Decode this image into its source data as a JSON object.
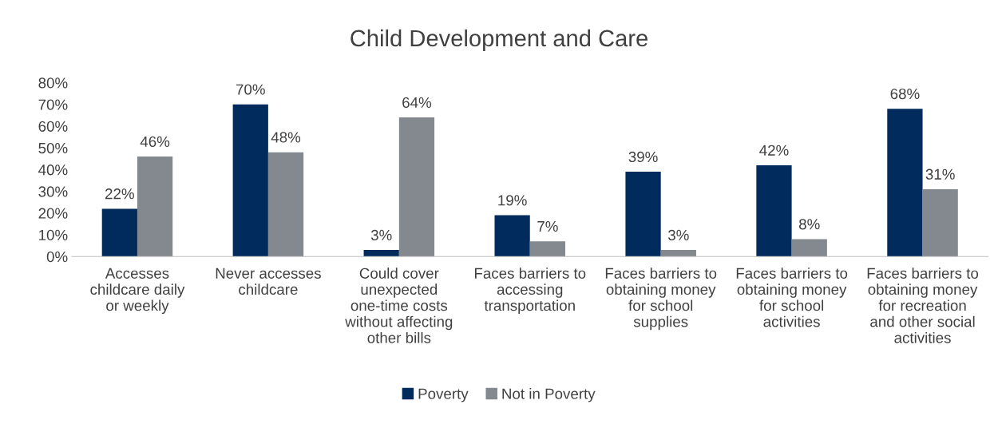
{
  "chart_data": {
    "type": "bar",
    "title": "Child Development and Care",
    "categories": [
      "Accesses\nchildcare daily\nor weekly",
      "Never accesses\nchildcare",
      "Could cover\nunexpected\none-time costs\nwithout affecting\nother bills",
      "Faces barriers to\naccessing\ntransportation",
      "Faces barriers to\nobtaining money\nfor school\nsupplies",
      "Faces barriers to\nobtaining money\nfor school\nactivities",
      "Faces barriers to\nobtaining money\nfor recreation\nand other social\nactivities"
    ],
    "series": [
      {
        "name": "Poverty",
        "color": "#002b5c",
        "values": [
          22,
          70,
          3,
          19,
          39,
          42,
          68
        ],
        "value_labels": [
          "22%",
          "70%",
          "3%",
          "19%",
          "39%",
          "42%",
          "68%"
        ]
      },
      {
        "name": "Not in Poverty",
        "color": "#83898f",
        "values": [
          46,
          48,
          64,
          7,
          3,
          8,
          31
        ],
        "value_labels": [
          "46%",
          "48%",
          "64%",
          "7%",
          "3%",
          "8%",
          "31%"
        ]
      }
    ],
    "ylim": [
      0,
      80
    ],
    "yticks": [
      {
        "value": 0,
        "label": "0%"
      },
      {
        "value": 10,
        "label": "10%"
      },
      {
        "value": 20,
        "label": "20%"
      },
      {
        "value": 30,
        "label": "30%"
      },
      {
        "value": 40,
        "label": "40%"
      },
      {
        "value": 50,
        "label": "50%"
      },
      {
        "value": 60,
        "label": "60%"
      },
      {
        "value": 70,
        "label": "70%"
      },
      {
        "value": 80,
        "label": "80%"
      }
    ],
    "grid": false,
    "legend": "bottom"
  }
}
